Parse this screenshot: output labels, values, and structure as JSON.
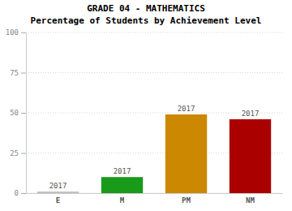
{
  "chart_data": {
    "type": "bar",
    "title": "GRADE 04 - MATHEMATICS",
    "subtitle": "Percentage of Students by Achievement Level",
    "categories": [
      "E",
      "M",
      "PM",
      "NM"
    ],
    "values": [
      1,
      10,
      49,
      46
    ],
    "colors": [
      "#c0c0c0",
      "#1a9a1a",
      "#cc8800",
      "#aa0000"
    ],
    "annotations": [
      "2017",
      "2017",
      "2017",
      "2017"
    ],
    "ylim": [
      0,
      100
    ],
    "yticks": [
      0,
      25,
      50,
      75,
      100
    ],
    "grid": true
  }
}
